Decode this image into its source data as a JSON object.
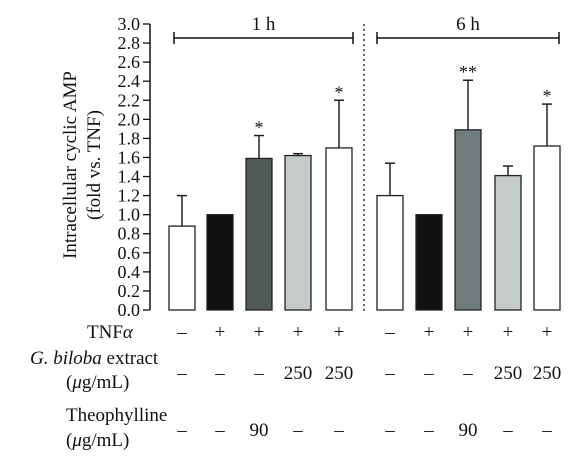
{
  "chart_data": {
    "type": "bar",
    "ylabel_line1": "Intracellular cyclic AMP",
    "ylabel_line2": "(fold vs. TNF)",
    "ylim": [
      0,
      3.0
    ],
    "yticks": [
      "0.0",
      "0.2",
      "0.4",
      "0.6",
      "0.8",
      "1.0",
      "1.2",
      "1.4",
      "1.6",
      "1.8",
      "2.0",
      "2.2",
      "2.4",
      "2.6",
      "2.8",
      "3.0"
    ],
    "groups": [
      {
        "label": "1 h",
        "bars": [
          {
            "value": 0.88,
            "error": 0.32,
            "color": "#ffffff",
            "sig": ""
          },
          {
            "value": 1.0,
            "error": 0.0,
            "color": "#111111",
            "sig": ""
          },
          {
            "value": 1.59,
            "error": 0.24,
            "color": "#525a5a",
            "sig": "*"
          },
          {
            "value": 1.62,
            "error": 0.02,
            "color": "#c5cbc6",
            "sig": ""
          },
          {
            "value": 1.7,
            "error": 0.5,
            "color": "#ffffff",
            "sig": "*"
          }
        ]
      },
      {
        "label": "6 h",
        "bars": [
          {
            "value": 1.2,
            "error": 0.34,
            "color": "#ffffff",
            "sig": ""
          },
          {
            "value": 1.0,
            "error": 0.0,
            "color": "#111111",
            "sig": ""
          },
          {
            "value": 1.89,
            "error": 0.52,
            "color": "#707b7b",
            "sig": "**"
          },
          {
            "value": 1.41,
            "error": 0.1,
            "color": "#c5cbc6",
            "sig": ""
          },
          {
            "value": 1.72,
            "error": 0.44,
            "color": "#ffffff",
            "sig": "*"
          }
        ]
      }
    ]
  },
  "conditions": {
    "tnf_label": "TNF",
    "tnf_symbol": "α",
    "tnf_values": [
      "–",
      "+",
      "+",
      "+",
      "+",
      "–",
      "+",
      "+",
      "+",
      "+"
    ],
    "ginkgo_label_italic": "G. biloba",
    "ginkgo_label_rest": " extract",
    "ginkgo_unit_mu": "μ",
    "ginkgo_unit_rest": "g/mL)",
    "ginkgo_values": [
      "–",
      "–",
      "–",
      "250",
      "250",
      "–",
      "–",
      "–",
      "250",
      "250"
    ],
    "theo_label": "Theophylline",
    "theo_unit_mu": "μ",
    "theo_unit_rest": "g/mL)",
    "theo_values": [
      "–",
      "–",
      "90",
      "–",
      "–",
      "–",
      "–",
      "90",
      "–",
      "–"
    ]
  }
}
